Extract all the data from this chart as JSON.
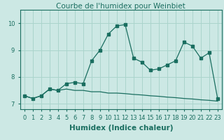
{
  "title": "Courbe de l'humidex pour Weinbiet",
  "xlabel": "Humidex (Indice chaleur)",
  "bg_color": "#cce8e4",
  "line_color": "#1a6e60",
  "grid_color": "#aad4cc",
  "line1_x": [
    0,
    1,
    2,
    3,
    4,
    5,
    6,
    7,
    8,
    9,
    10,
    11,
    12,
    13,
    14,
    15,
    16,
    17,
    18,
    19,
    20,
    21,
    22,
    23
  ],
  "line1_y": [
    7.3,
    7.2,
    7.3,
    7.55,
    7.5,
    7.75,
    7.8,
    7.75,
    8.6,
    9.0,
    9.6,
    9.9,
    9.95,
    8.7,
    8.55,
    8.25,
    8.3,
    8.45,
    8.6,
    9.3,
    9.15,
    8.7,
    8.9,
    7.2
  ],
  "line2_x": [
    0,
    1,
    2,
    3,
    4,
    5,
    6,
    7,
    8,
    9,
    10,
    11,
    12,
    13,
    14,
    15,
    16,
    17,
    18,
    19,
    20,
    21,
    22,
    23
  ],
  "line2_y": [
    7.3,
    7.2,
    7.3,
    7.55,
    7.5,
    7.55,
    7.5,
    7.5,
    7.45,
    7.45,
    7.4,
    7.4,
    7.38,
    7.35,
    7.33,
    7.3,
    7.28,
    7.25,
    7.23,
    7.2,
    7.18,
    7.15,
    7.13,
    7.1
  ],
  "ylim": [
    6.8,
    10.5
  ],
  "yticks": [
    7,
    8,
    9,
    10
  ],
  "xticks": [
    0,
    1,
    2,
    3,
    4,
    5,
    6,
    7,
    8,
    9,
    10,
    11,
    12,
    13,
    14,
    15,
    16,
    17,
    18,
    19,
    20,
    21,
    22,
    23
  ],
  "title_fontsize": 7.5,
  "xlabel_fontsize": 7.5,
  "tick_fontsize": 6.0,
  "marker_size": 2.5,
  "line_width": 0.9
}
